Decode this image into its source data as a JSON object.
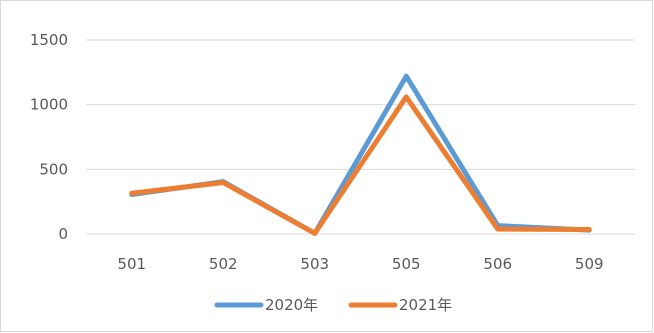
{
  "chart_data": {
    "type": "line",
    "title": "",
    "xlabel": "",
    "ylabel": "",
    "categories": [
      "501",
      "502",
      "503",
      "505",
      "506",
      "509"
    ],
    "series": [
      {
        "name": "2020年",
        "color": "#5b9bd5",
        "values": [
          305,
          405,
          5,
          1220,
          65,
          30
        ]
      },
      {
        "name": "2021年",
        "color": "#ed7d31",
        "values": [
          315,
          398,
          5,
          1060,
          38,
          35
        ]
      }
    ],
    "ylim": [
      0,
      1500
    ],
    "yticks": [
      0,
      500,
      1000,
      1500
    ],
    "grid": true,
    "legend": "bottom"
  }
}
